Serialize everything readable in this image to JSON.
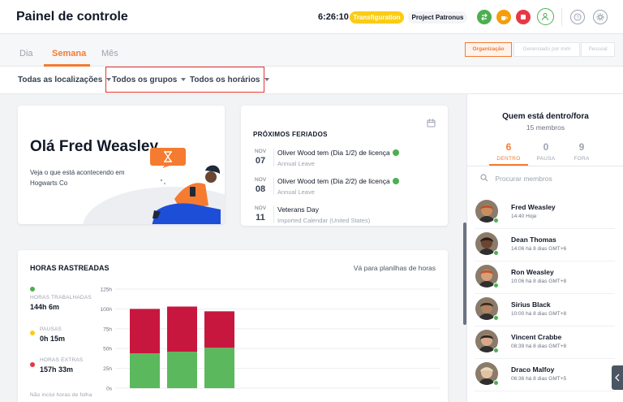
{
  "header": {
    "title": "Painel de controle",
    "clock": "6:26:10",
    "transfiguration": "Transfiguration",
    "project": "Project Patronus"
  },
  "tabs": [
    {
      "label": "Dia",
      "active": false
    },
    {
      "label": "Semana",
      "active": true
    },
    {
      "label": "Mês",
      "active": false
    }
  ],
  "view_buttons": {
    "org": "Organização",
    "managed": "Gerenciado por mim",
    "personal": "Pessoal"
  },
  "filters": {
    "locations": "Todas as localizações",
    "groups": "Todos os grupos",
    "schedules": "Todos os horários"
  },
  "greeting": {
    "title": "Olá Fred Weasley",
    "subtitle": "Veja o que está acontecendo em Hogwarts Co"
  },
  "holidays": {
    "title": "PRÓXIMOS FERIADOS",
    "items": [
      {
        "month": "NOV",
        "day": "07",
        "name": "Oliver Wood tem (Dia 1/2) de licença",
        "sub": "Annual Leave",
        "approved": true
      },
      {
        "month": "NOV",
        "day": "08",
        "name": "Oliver Wood tem (Dia 2/2) de licença",
        "sub": "Annual Leave",
        "approved": true
      },
      {
        "month": "NOV",
        "day": "11",
        "name": "Veterans Day",
        "sub": "Imported Calendar (United States)",
        "approved": false
      }
    ]
  },
  "hours": {
    "title": "HORAS RASTREADAS",
    "link": "Vá para planilhas de horas",
    "stats": [
      {
        "label": "HORAS TRABALHADAS",
        "value": "144h 6m",
        "color": "#4caf50"
      },
      {
        "label": "PAUSAS",
        "value": "0h 15m",
        "color": "#facc15"
      },
      {
        "label": "HORAS EXTRAS",
        "value": "157h 33m",
        "color": "#e53945"
      }
    ],
    "footnote": "Não inclui horas de folha"
  },
  "chart_data": {
    "type": "bar",
    "stacked": true,
    "ylim": [
      0,
      125
    ],
    "yticks": [
      "125h",
      "100h",
      "75h",
      "50h",
      "25h",
      "0s"
    ],
    "series": [
      {
        "values": [
          44,
          46,
          51
        ],
        "color": "#5cb85c"
      },
      {
        "values": [
          56,
          57,
          46
        ],
        "color": "#c8173f"
      }
    ],
    "xlabel": "",
    "ylabel": ""
  },
  "who_is_in": {
    "title": "Quem está dentro/fora",
    "subtitle": "15 membros",
    "tabs": [
      {
        "count": "6",
        "label": "DENTRO",
        "active": true
      },
      {
        "count": "0",
        "label": "PAUSA",
        "active": false
      },
      {
        "count": "9",
        "label": "FORA",
        "active": false
      }
    ],
    "search_placeholder": "Procurar membros",
    "members": [
      {
        "name": "Fred Weasley",
        "time": "14:40 Hoje",
        "skin": "#c98e5f",
        "hair": "#b8522b"
      },
      {
        "name": "Dean Thomas",
        "time": "14:06 há 8 dias GMT+6",
        "skin": "#6b4530",
        "hair": "#2a1a12"
      },
      {
        "name": "Ron Weasley",
        "time": "10:06 há 8 dias GMT+8",
        "skin": "#d8a07a",
        "hair": "#c6532a"
      },
      {
        "name": "Sirius Black",
        "time": "10:00 há 8 dias GMT+8",
        "skin": "#b08462",
        "hair": "#3b2a1e"
      },
      {
        "name": "Vincent Crabbe",
        "time": "08:39 há 8 dias GMT+8",
        "skin": "#d9a88a",
        "hair": "#2e2520"
      },
      {
        "name": "Draco Malfoy",
        "time": "06:36 há 8 dias GMT+5",
        "skin": "#e3c2a4",
        "hair": "#e8dcc0"
      }
    ]
  }
}
